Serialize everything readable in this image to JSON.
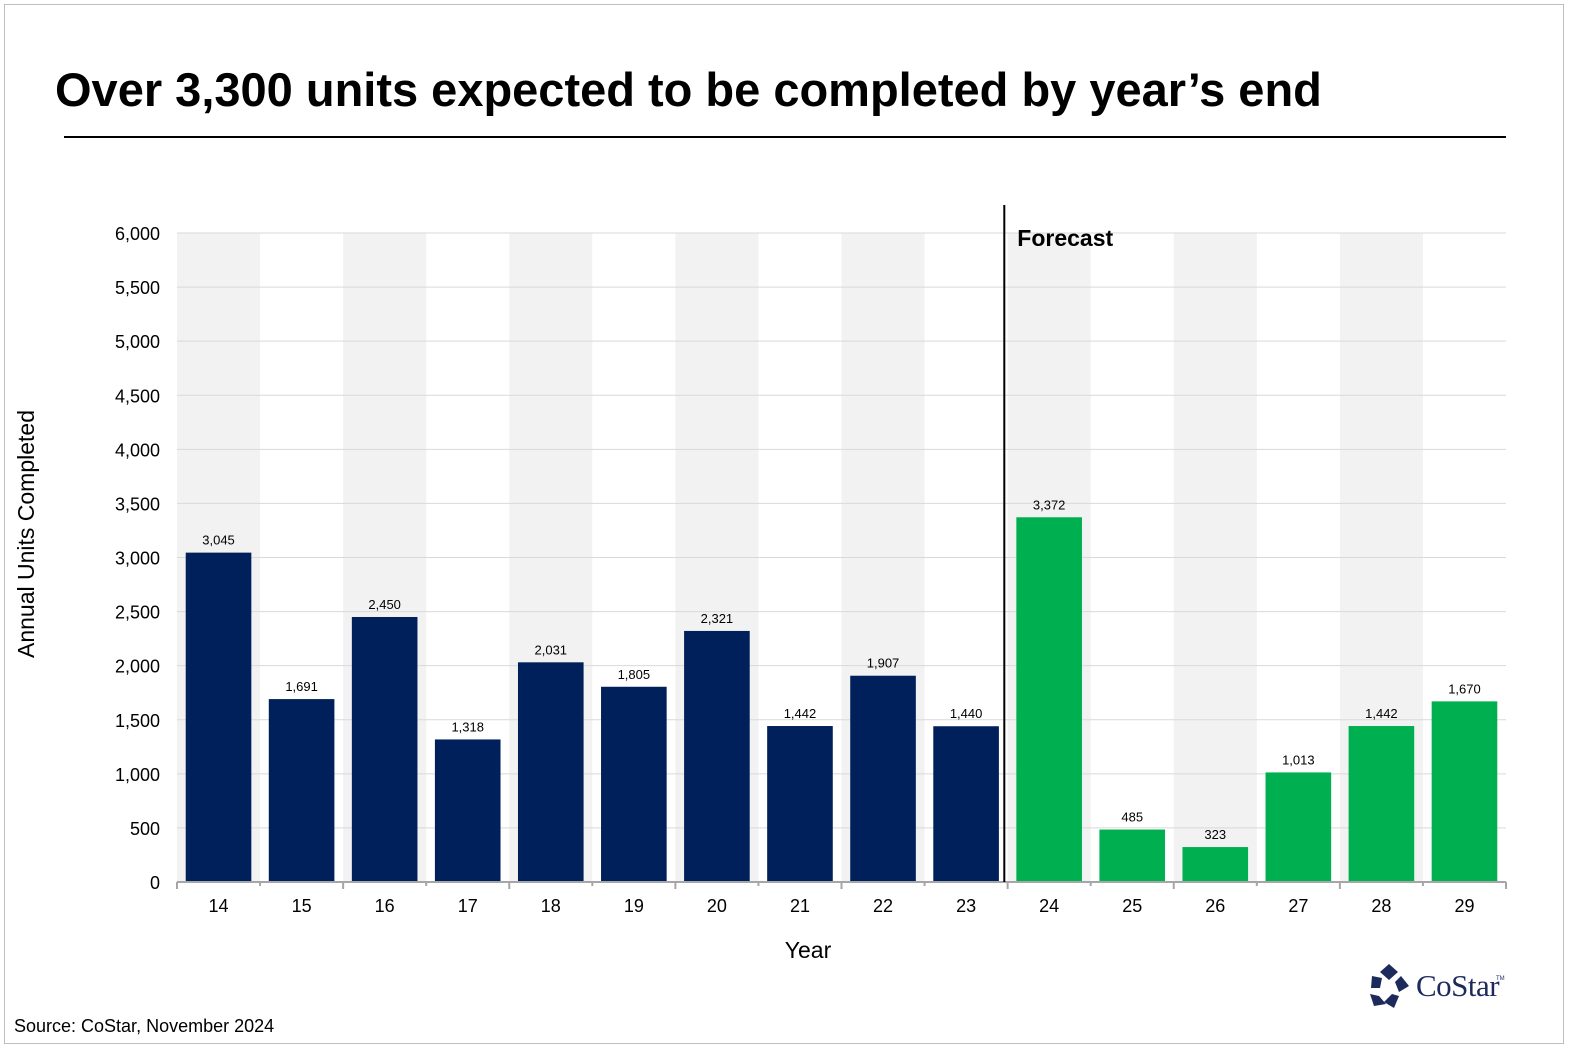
{
  "page": {
    "title": "Over 3,300 units expected to be completed by year’s end",
    "source": "Source: CoStar, November 2024",
    "logo_text": "CoStar",
    "logo_tm": "TM"
  },
  "chart_data": {
    "type": "bar",
    "title": "Over 3,300 units expected to be completed by year’s end",
    "xlabel": "Year",
    "ylabel": "Annual Units Completed",
    "categories": [
      "14",
      "15",
      "16",
      "17",
      "18",
      "19",
      "20",
      "21",
      "22",
      "23",
      "24",
      "25",
      "26",
      "27",
      "28",
      "29"
    ],
    "values": [
      3045,
      1691,
      2450,
      1318,
      2031,
      1805,
      2321,
      1442,
      1907,
      1440,
      3372,
      485,
      323,
      1013,
      1442,
      1670
    ],
    "data_labels": [
      "3,045",
      "1,691",
      "2,450",
      "1,318",
      "2,031",
      "1,805",
      "2,321",
      "1,442",
      "1,907",
      "1,440",
      "3,372",
      "485",
      "323",
      "1,013",
      "1,442",
      "1,670"
    ],
    "ylim": [
      0,
      6000
    ],
    "yticks": [
      0,
      500,
      1000,
      1500,
      2000,
      2500,
      3000,
      3500,
      4000,
      4500,
      5000,
      5500,
      6000
    ],
    "ytick_labels": [
      "0",
      "500",
      "1,000",
      "1,500",
      "2,000",
      "2,500",
      "3,000",
      "3,500",
      "4,000",
      "4,500",
      "5,000",
      "5,500",
      "6,000"
    ],
    "forecast_start_category": "24",
    "forecast_label": "Forecast",
    "grid": true,
    "legend": "none",
    "colors": {
      "historical": "#00205b",
      "forecast": "#00b050",
      "band": "#f2f2f2",
      "gridline": "#d9d9d9",
      "axis": "#a6a6a6"
    }
  }
}
